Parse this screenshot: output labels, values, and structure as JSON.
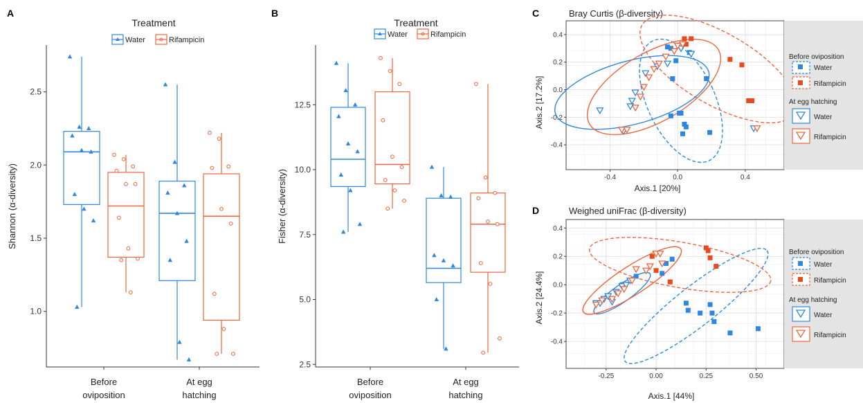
{
  "panel_letters": {
    "a": "A",
    "b": "B",
    "c": "C",
    "d": "D"
  },
  "colors": {
    "water": "#2E86DE",
    "rifampicin": "#F0643A",
    "rif_fill": "#E8491D",
    "panel_bg": "#E4E4E4"
  },
  "legend_treatment": {
    "title": "Treatment",
    "water": "Water",
    "rifampicin": "Rifampicin"
  },
  "legend_ordination": {
    "group1_title": "Before oviposition",
    "group2_title": "At egg hatching",
    "water": "Water",
    "rifampicin": "Rifampicin"
  },
  "chart_data": [
    {
      "type": "box",
      "panel": "A",
      "ylabel": "Shannon (α-diversity)",
      "xlabel": "",
      "categories": [
        "Before oviposition",
        "At egg hatching"
      ],
      "ylim": [
        0.62,
        2.82
      ],
      "yticks": [
        1.0,
        1.5,
        2.0,
        2.5
      ],
      "ytick_labels": [
        "1.0",
        "1.5",
        "2.0",
        "2.5"
      ],
      "series": [
        {
          "name": "Water",
          "boxes": [
            {
              "min": 1.03,
              "q1": 1.73,
              "median": 2.09,
              "q3": 2.23,
              "max": 2.74
            },
            {
              "min": 0.67,
              "q1": 1.21,
              "median": 1.67,
              "q3": 1.89,
              "max": 2.55
            }
          ],
          "points": [
            [
              2.74,
              2.26,
              2.25,
              2.2,
              2.1,
              2.09,
              1.8,
              1.7,
              1.62,
              1.03
            ],
            [
              2.55,
              2.02,
              1.86,
              1.81,
              1.67,
              1.48,
              1.35,
              0.79,
              0.67
            ]
          ]
        },
        {
          "name": "Rifampicin",
          "boxes": [
            {
              "min": 1.13,
              "q1": 1.37,
              "median": 1.72,
              "q3": 1.95,
              "max": 2.07
            },
            {
              "min": 0.71,
              "q1": 0.94,
              "median": 1.65,
              "q3": 1.94,
              "max": 2.22
            }
          ],
          "points": [
            [
              2.07,
              2.04,
              1.99,
              1.96,
              1.87,
              1.87,
              1.64,
              1.43,
              1.36,
              1.35,
              1.13
            ],
            [
              2.22,
              2.18,
              1.99,
              1.98,
              1.7,
              1.6,
              1.12,
              0.88,
              0.71,
              0.71
            ]
          ]
        }
      ]
    },
    {
      "type": "box",
      "panel": "B",
      "ylabel": "Fisher (α-diversity)",
      "xlabel": "",
      "categories": [
        "Before oviposition",
        "At egg hatching"
      ],
      "ylim": [
        2.4,
        14.8
      ],
      "yticks": [
        2.5,
        5.0,
        7.5,
        10.0,
        12.5
      ],
      "ytick_labels": [
        "2.5",
        "5.0",
        "7.5",
        "10.0",
        "12.5"
      ],
      "series": [
        {
          "name": "Water",
          "boxes": [
            {
              "min": 7.6,
              "q1": 9.35,
              "median": 10.4,
              "q3": 12.4,
              "max": 14.1
            },
            {
              "min": 3.1,
              "q1": 5.65,
              "median": 6.2,
              "q3": 8.9,
              "max": 10.1
            }
          ],
          "points": [
            [
              14.1,
              13.05,
              12.5,
              12.05,
              11.0,
              10.7,
              9.8,
              9.2,
              7.9,
              7.6
            ],
            [
              10.1,
              9.0,
              8.95,
              6.7,
              6.5,
              6.3,
              5.0,
              3.1
            ]
          ]
        },
        {
          "name": "Rifampicin",
          "boxes": [
            {
              "min": 8.5,
              "q1": 9.45,
              "median": 10.2,
              "q3": 13.0,
              "max": 14.3
            },
            {
              "min": 2.95,
              "q1": 6.05,
              "median": 7.9,
              "q3": 9.1,
              "max": 13.3
            }
          ],
          "points": [
            [
              14.3,
              13.8,
              13.3,
              11.9,
              10.5,
              10.1,
              9.6,
              9.2,
              8.8,
              8.5
            ],
            [
              13.3,
              9.7,
              9.1,
              8.9,
              8.0,
              7.9,
              6.4,
              5.6,
              3.5,
              2.95
            ]
          ]
        }
      ]
    },
    {
      "type": "scatter",
      "panel": "C",
      "title": "Bray Curtis (β-diversity)",
      "xlabel": "Axis.1   [20%]",
      "ylabel": "Axis.2   [17.2%]",
      "xlim": [
        -0.66,
        0.63
      ],
      "ylim": [
        -0.58,
        0.5
      ],
      "xticks": [
        -0.4,
        0.0,
        0.4
      ],
      "xtick_labels": [
        "-0.4",
        "0.0",
        "0.4"
      ],
      "yticks": [
        -0.4,
        -0.2,
        0.0,
        0.2,
        0.4
      ],
      "ytick_labels": [
        "-0.4",
        "-0.2",
        "0.0",
        "0.2",
        "0.4"
      ],
      "series": [
        {
          "name": "Before oviposition · Water",
          "marker": "square",
          "color": "water",
          "x": [
            -0.06,
            -0.04,
            0.07,
            0.17,
            -0.03,
            0.01,
            0.02,
            0.04,
            0.05,
            -0.04,
            0.03,
            0.19,
            -0.01
          ],
          "y": [
            0.31,
            0.3,
            0.27,
            0.08,
            0.08,
            -0.17,
            -0.17,
            -0.25,
            -0.27,
            -0.19,
            -0.32,
            -0.31,
            0.21
          ]
        },
        {
          "name": "Before oviposition · Rifampicin",
          "marker": "square",
          "color": "rifampicin",
          "x": [
            0.04,
            0.05,
            0.08,
            0.31,
            0.38,
            0.42,
            0.44
          ],
          "y": [
            0.37,
            0.33,
            0.37,
            0.22,
            0.18,
            -0.08,
            -0.08
          ]
        },
        {
          "name": "At egg hatching · Water",
          "marker": "triangle",
          "color": "water",
          "x": [
            -0.46,
            -0.32,
            -0.28,
            -0.27,
            -0.25,
            -0.19,
            -0.12,
            -0.06,
            0.02,
            0.08,
            0.45
          ],
          "y": [
            -0.15,
            -0.3,
            -0.12,
            -0.08,
            -0.02,
            0.12,
            0.17,
            0.19,
            0.3,
            0.26,
            -0.28
          ]
        },
        {
          "name": "At egg hatching · Rifampicin",
          "marker": "triangle",
          "color": "rifampicin",
          "x": [
            -0.33,
            -0.3,
            -0.25,
            -0.22,
            -0.2,
            -0.17,
            -0.14,
            -0.11,
            -0.07,
            -0.02,
            0.0,
            0.03,
            0.47
          ],
          "y": [
            -0.29,
            -0.29,
            -0.13,
            -0.05,
            0.02,
            0.09,
            0.15,
            0.19,
            0.24,
            0.28,
            0.32,
            0.33,
            -0.28
          ]
        }
      ],
      "ellipses": [
        {
          "group": "Before oviposition · Water",
          "style": "dashed",
          "color": "water",
          "cx": 0.02,
          "cy": -0.08,
          "rx": 0.2,
          "ry": 0.48,
          "angle_deg": 25
        },
        {
          "group": "Before oviposition · Rifampicin",
          "style": "dashed",
          "color": "rifampicin",
          "cx": 0.24,
          "cy": 0.15,
          "rx": 0.52,
          "ry": 0.26,
          "angle_deg": -30
        },
        {
          "group": "At egg hatching · Water",
          "style": "solid",
          "color": "water",
          "cx": -0.27,
          "cy": -0.02,
          "rx": 0.47,
          "ry": 0.23,
          "angle_deg": 15
        },
        {
          "group": "At egg hatching · Rifampicin",
          "style": "solid",
          "color": "rifampicin",
          "cx": -0.14,
          "cy": 0.02,
          "rx": 0.44,
          "ry": 0.25,
          "angle_deg": 30
        }
      ]
    },
    {
      "type": "scatter",
      "panel": "D",
      "title": "Weighed uniFrac (β-diversity)",
      "xlabel": "Axis.1   [44%]",
      "ylabel": "Axis.2   [24.4%]",
      "xlim": [
        -0.45,
        0.64
      ],
      "ylim": [
        -0.59,
        0.46
      ],
      "xticks": [
        -0.25,
        0.0,
        0.25,
        0.5
      ],
      "xtick_labels": [
        "-0.25",
        "0.00",
        "0.25",
        "0.50"
      ],
      "yticks": [
        -0.4,
        -0.2,
        0.0,
        0.2,
        0.4
      ],
      "ytick_labels": [
        "-0.4",
        "-0.2",
        "0.0",
        "0.2",
        "0.4"
      ],
      "series": [
        {
          "name": "Before oviposition · Water",
          "marker": "square",
          "color": "water",
          "x": [
            -0.1,
            -0.17,
            0.08,
            0.05,
            0.03,
            0.15,
            0.16,
            0.27,
            0.22,
            0.28,
            0.29,
            0.37,
            0.51
          ],
          "y": [
            0.06,
            0.0,
            0.18,
            0.15,
            0.08,
            -0.13,
            -0.18,
            -0.14,
            -0.2,
            -0.2,
            -0.26,
            -0.34,
            -0.31
          ]
        },
        {
          "name": "Before oviposition · Rifampicin",
          "marker": "square",
          "color": "rifampicin",
          "x": [
            -0.02,
            0.0,
            0.07,
            0.25,
            0.26,
            0.27,
            0.3
          ],
          "y": [
            0.2,
            0.1,
            0.02,
            0.26,
            0.24,
            0.19,
            0.13
          ]
        },
        {
          "name": "At egg hatching · Water",
          "marker": "triangle",
          "color": "water",
          "x": [
            -0.3,
            -0.28,
            -0.26,
            -0.24,
            -0.22,
            -0.2,
            -0.17,
            -0.15,
            -0.13
          ],
          "y": [
            -0.13,
            -0.13,
            -0.1,
            -0.08,
            -0.12,
            -0.05,
            -0.01,
            0.0,
            0.03
          ]
        },
        {
          "name": "At egg hatching · Rifampicin",
          "marker": "triangle",
          "color": "rifampicin",
          "x": [
            -0.3,
            -0.27,
            -0.22,
            -0.19,
            -0.16,
            -0.12,
            -0.1,
            -0.05,
            -0.03,
            0.0,
            0.02,
            0.03
          ],
          "y": [
            -0.14,
            -0.11,
            -0.1,
            -0.06,
            -0.03,
            0.03,
            0.11,
            0.1,
            0.13,
            0.22,
            0.22,
            0.15
          ]
        }
      ],
      "ellipses": [
        {
          "group": "Before oviposition · Water",
          "style": "dashed",
          "color": "water",
          "cx": 0.2,
          "cy": -0.15,
          "rx": 0.45,
          "ry": 0.14,
          "angle_deg": 38
        },
        {
          "group": "Before oviposition · Rifampicin",
          "style": "dashed",
          "color": "rifampicin",
          "cx": 0.12,
          "cy": 0.14,
          "rx": 0.46,
          "ry": 0.16,
          "angle_deg": -10
        },
        {
          "group": "At egg hatching · Water",
          "style": "solid",
          "color": "water",
          "cx": -0.17,
          "cy": -0.06,
          "rx": 0.17,
          "ry": 0.06,
          "angle_deg": 35
        },
        {
          "group": "At egg hatching · Rifampicin",
          "style": "solid",
          "color": "rifampicin",
          "cx": -0.12,
          "cy": 0.03,
          "rx": 0.29,
          "ry": 0.1,
          "angle_deg": 33
        }
      ]
    }
  ]
}
